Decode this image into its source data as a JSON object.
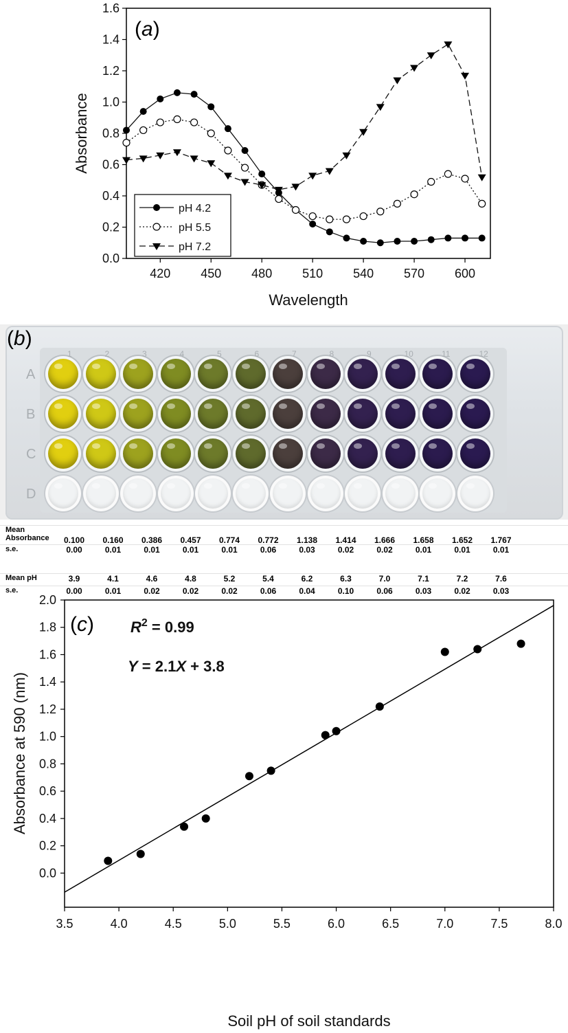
{
  "panel_a": {
    "label": "a",
    "chart_data": {
      "type": "line",
      "xlabel": "Wavelength",
      "ylabel": "Absorbance",
      "xlim": [
        400,
        615
      ],
      "ylim": [
        0.0,
        1.6
      ],
      "xticks": [
        "420",
        "450",
        "480",
        "510",
        "540",
        "570",
        "600"
      ],
      "yticks": [
        "0.0",
        "0.2",
        "0.4",
        "0.6",
        "0.8",
        "1.0",
        "1.2",
        "1.4",
        "1.6"
      ],
      "legend_position": "bottom-left",
      "x": [
        400,
        410,
        420,
        430,
        440,
        450,
        460,
        470,
        480,
        490,
        500,
        510,
        520,
        530,
        540,
        550,
        560,
        570,
        580,
        590,
        600,
        610
      ],
      "series": [
        {
          "name": "pH 4.2",
          "marker": "filled-circle",
          "line": "solid",
          "values": [
            0.82,
            0.94,
            1.02,
            1.06,
            1.05,
            0.97,
            0.83,
            0.69,
            0.54,
            0.42,
            0.31,
            0.22,
            0.17,
            0.13,
            0.11,
            0.1,
            0.11,
            0.11,
            0.12,
            0.13,
            0.13,
            0.13
          ]
        },
        {
          "name": "pH 5.5",
          "marker": "open-circle",
          "line": "dotted",
          "values": [
            0.74,
            0.82,
            0.87,
            0.89,
            0.87,
            0.8,
            0.69,
            0.58,
            0.47,
            0.38,
            0.31,
            0.27,
            0.25,
            0.25,
            0.27,
            0.3,
            0.35,
            0.41,
            0.49,
            0.54,
            0.51,
            0.35
          ]
        },
        {
          "name": "pH 7.2",
          "marker": "filled-triangle-down",
          "line": "dashed",
          "values": [
            0.63,
            0.64,
            0.66,
            0.68,
            0.64,
            0.61,
            0.53,
            0.49,
            0.47,
            0.44,
            0.46,
            0.53,
            0.56,
            0.66,
            0.81,
            0.97,
            1.14,
            1.22,
            1.3,
            1.37,
            1.17,
            0.52
          ]
        }
      ]
    }
  },
  "panel_b": {
    "label": "b",
    "row_labels": [
      "A",
      "B",
      "C",
      "D"
    ],
    "col_labels": [
      "1",
      "2",
      "3",
      "4",
      "5",
      "6",
      "7",
      "8",
      "9",
      "10",
      "11",
      "12"
    ],
    "well_colors": [
      "#e1cf10",
      "#cfc816",
      "#9da21e",
      "#7f8c22",
      "#6d7a2a",
      "#5f6a2c",
      "#4b3f3c",
      "#3c2a47",
      "#33214f",
      "#2e1d4f",
      "#2b1b4e",
      "#2a1a50"
    ],
    "table": {
      "chart_data": {
        "type": "table",
        "rows": [
          {
            "label": "Mean Absorbance",
            "values": [
              "0.100",
              "0.160",
              "0.386",
              "0.457",
              "0.774",
              "0.772",
              "1.138",
              "1.414",
              "1.666",
              "1.658",
              "1.652",
              "1.767"
            ]
          },
          {
            "label": "s.e.",
            "values": [
              "0.00",
              "0.01",
              "0.01",
              "0.01",
              "0.01",
              "0.06",
              "0.03",
              "0.02",
              "0.02",
              "0.01",
              "0.01",
              "0.01"
            ]
          },
          {
            "label": "Mean pH",
            "values": [
              "3.9",
              "4.1",
              "4.6",
              "4.8",
              "5.2",
              "5.4",
              "6.2",
              "6.3",
              "7.0",
              "7.1",
              "7.2",
              "7.6"
            ]
          },
          {
            "label": "s.e.",
            "values": [
              "0.00",
              "0.01",
              "0.02",
              "0.02",
              "0.02",
              "0.06",
              "0.04",
              "0.10",
              "0.06",
              "0.03",
              "0.02",
              "0.03"
            ]
          }
        ]
      }
    }
  },
  "panel_c": {
    "label": "c",
    "r2": "R² = 0.99",
    "equation": "Y = 2.1X + 3.8",
    "chart_data": {
      "type": "scatter",
      "xlabel": "Soil pH of soil standards",
      "ylabel": "Absorbance at 590 (nm)",
      "xlim": [
        3.5,
        8.0
      ],
      "ylim": [
        -0.25,
        2.0
      ],
      "xticks": [
        "3.5",
        "4.0",
        "4.5",
        "5.0",
        "5.5",
        "6.0",
        "6.5",
        "7.0",
        "7.5",
        "8.0"
      ],
      "yticks": [
        "0.0",
        "0.2",
        "0.4",
        "0.6",
        "0.8",
        "1.0",
        "1.2",
        "1.4",
        "1.6",
        "1.8",
        "2.0"
      ],
      "x": [
        3.9,
        4.2,
        4.6,
        4.8,
        5.2,
        5.4,
        5.9,
        6.0,
        6.4,
        7.0,
        7.3,
        7.7
      ],
      "y": [
        0.09,
        0.14,
        0.34,
        0.4,
        0.71,
        0.75,
        1.01,
        1.04,
        1.22,
        1.62,
        1.64,
        1.68
      ],
      "fit_line": {
        "x": [
          3.5,
          8.0
        ],
        "y": [
          -0.14,
          1.96
        ]
      }
    }
  }
}
